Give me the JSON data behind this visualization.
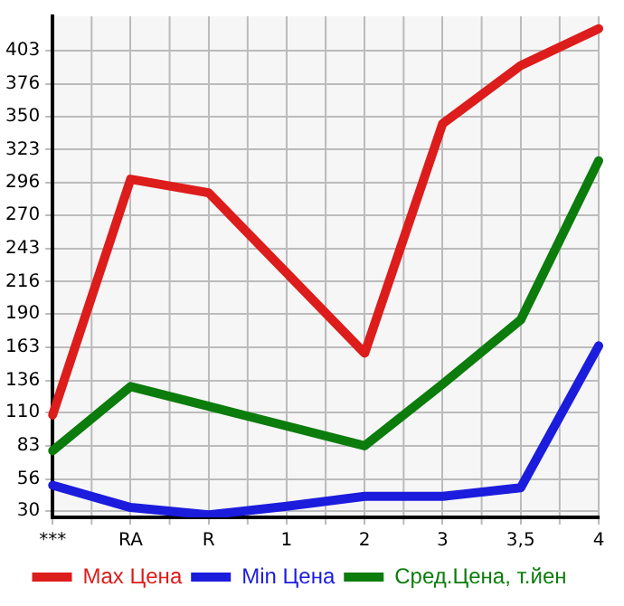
{
  "chart_data": {
    "type": "line",
    "categories": [
      "***",
      "RA",
      "R",
      "1",
      "2",
      "3",
      "3,5",
      "4"
    ],
    "series": [
      {
        "name": "Max Цена",
        "color": "#dd1c1c",
        "values": [
          108,
          299,
          288,
          223,
          158,
          344,
          391,
          421
        ]
      },
      {
        "name": "Min Цена",
        "color": "#1c1cdd",
        "values": [
          51,
          33,
          27,
          34,
          42,
          42,
          49,
          164
        ]
      },
      {
        "name": "Сред.Цена, т.йен",
        "color": "#0c7c0c",
        "values": [
          79,
          131,
          115,
          99,
          83,
          133,
          185,
          314
        ]
      }
    ],
    "ylim": [
      25,
      431
    ],
    "yticks": [
      30,
      56,
      83,
      110,
      136,
      163,
      190,
      216,
      243,
      270,
      296,
      323,
      350,
      376,
      403
    ],
    "grid": true,
    "legend": "bottom",
    "marker": "none",
    "line_style": "solid"
  }
}
